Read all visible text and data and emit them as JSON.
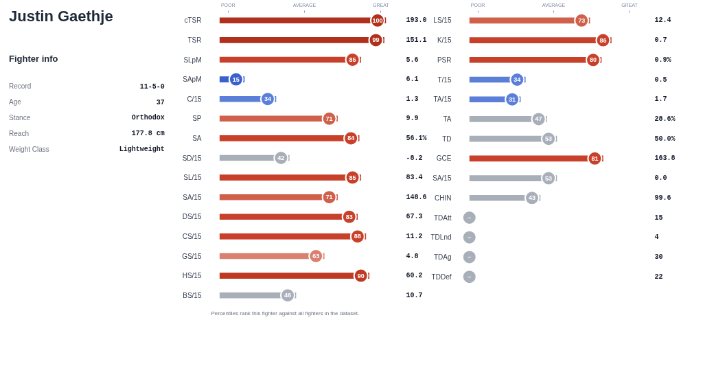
{
  "chart_data": [
    {
      "type": "other",
      "title": "Justin Gaethje",
      "subtitle": "Fighter info",
      "annotations": [
        "Record",
        "11-5-0",
        "Age",
        "37",
        "Stance",
        "Orthodox",
        "Reach",
        "177.8 cm",
        "Weight Class",
        "Lightweight"
      ]
    },
    {
      "type": "bar",
      "orientation": "horizontal",
      "data_labels": true,
      "categories": [
        "cTSR",
        "TSR",
        "SLpM",
        "SApM",
        "C/15",
        "SP",
        "SA",
        "SD/15",
        "SL/15",
        "SA/15",
        "DS/15",
        "CS/15",
        "GS/15",
        "HS/15",
        "BS/15"
      ],
      "values": [
        100,
        99,
        85,
        15,
        34,
        71,
        84,
        42,
        85,
        71,
        83,
        88,
        63,
        90,
        46
      ],
      "colors": [
        "#b1301c",
        "#b1301c",
        "#c8402a",
        "#3a5fcf",
        "#5b7fd9",
        "#d0604a",
        "#c8402a",
        "#a9afb9",
        "#c8402a",
        "#d0604a",
        "#c8402a",
        "#c8402a",
        "#d98070",
        "#be3822",
        "#a9afb9"
      ],
      "annotations": [
        "POOR",
        "AVERAGE",
        "GREAT",
        "193.0",
        "151.1",
        "5.6",
        "6.1",
        "1.3",
        "9.9",
        "56.1%",
        "-8.2",
        "83.4",
        "148.6",
        "67.3",
        "11.2",
        "4.8",
        "60.2",
        "10.7",
        "Percentiles rank this fighter against all fighters in the dataset."
      ]
    },
    {
      "type": "bar",
      "orientation": "horizontal",
      "categories": [
        "LS/15",
        "K/15",
        "PSR",
        "T/15",
        "TA/15",
        "TA",
        "TD",
        "GCE",
        "SA/15",
        "CHIN",
        "TDAtt",
        "TDLnd",
        "TDAg",
        "TDDef"
      ],
      "values": [
        73,
        86,
        80,
        34,
        31,
        47,
        53,
        81,
        53,
        43,
        null,
        null,
        null,
        null
      ],
      "value_labels": [
        "73",
        "86",
        "80",
        "34",
        "31",
        "47",
        "53",
        "81",
        "53",
        "43",
        "–",
        "–",
        "–",
        "–"
      ],
      "colors": [
        "#d0604a",
        "#c8402a",
        "#c8402a",
        "#5b7fd9",
        "#5b7fd9",
        "#a9afb9",
        "#a9afb9",
        "#c8402a",
        "#a9afb9",
        "#a9afb9",
        "#a9afb9",
        "#a9afb9",
        "#a9afb9",
        "#a9afb9"
      ],
      "annotations": [
        "POOR",
        "AVERAGE",
        "GREAT",
        "12.4",
        "0.7",
        "0.9%",
        "0.5",
        "1.7",
        "28.6%",
        "50.0%",
        "163.8",
        "0.0",
        "99.6",
        "15",
        "4",
        "30",
        "22"
      ]
    }
  ]
}
